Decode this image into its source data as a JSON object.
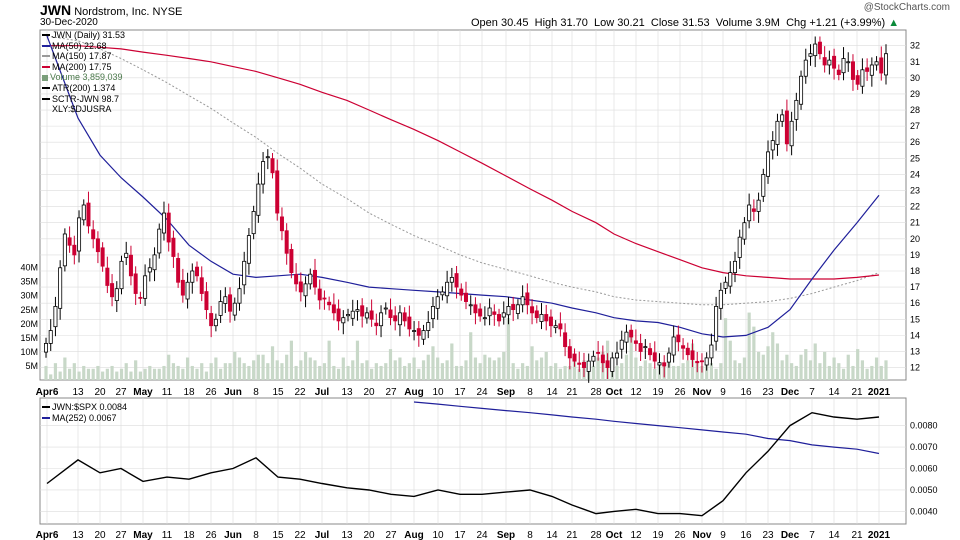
{
  "header": {
    "symbol": "JWN",
    "company": "Nordstrom, Inc.",
    "exchange": "NYSE",
    "date": "30-Dec-2020",
    "watermark": "@StockCharts.com",
    "open_label": "Open",
    "open": "30.45",
    "high_label": "High",
    "high": "31.70",
    "low_label": "Low",
    "low": "30.21",
    "close_label": "Close",
    "close": "31.53",
    "volume_label": "Volume",
    "volume": "3.9M",
    "chg_label": "Chg",
    "chg": "+1.21 (+3.99%)"
  },
  "legend_main": [
    {
      "text": "JWN (Daily) 31.53",
      "color": "#000000"
    },
    {
      "text": "MA(50) 22.68",
      "color": "#1f1f9a"
    },
    {
      "text": "MA(150) 17.87",
      "color": "#999999"
    },
    {
      "text": "MA(200) 17.75",
      "color": "#cc0033"
    },
    {
      "text": "Volume 3,859,039",
      "color": "#7a9e7a"
    },
    {
      "text": "ATR(200) 1.374",
      "color": "#000000"
    },
    {
      "text": "SCTR-JWN 98.7",
      "color": "#000000"
    },
    {
      "text": "XLY:$DJUSRA",
      "color": "#000000"
    }
  ],
  "legend_lower": [
    {
      "text": "JWN:$SPX 0.0084",
      "color": "#000000"
    },
    {
      "text": "MA(252) 0.0067",
      "color": "#1f1f9a"
    }
  ],
  "colors": {
    "up": "#000000",
    "down": "#cc0033",
    "ma50": "#1f1f9a",
    "ma150": "#999999",
    "ma200": "#cc0033",
    "volume": "#c8d8c8",
    "ratio": "#000000",
    "ratio_ma": "#1f1f9a",
    "grid": "#dcdcdc"
  },
  "chart_data": [
    {
      "type": "candlestick",
      "title": "JWN Nordstrom, Inc. NYSE",
      "x_ticks": [
        "Apr6",
        "13",
        "20",
        "27",
        "May",
        "11",
        "18",
        "26",
        "Jun",
        "8",
        "15",
        "22",
        "Jul",
        "13",
        "20",
        "27",
        "Aug",
        "10",
        "17",
        "24",
        "Sep",
        "8",
        "14",
        "21",
        "28",
        "Oct",
        "12",
        "19",
        "26",
        "Nov",
        "9",
        "16",
        "23",
        "Dec",
        "7",
        "14",
        "21",
        "2021"
      ],
      "y_ticks": [
        12,
        13,
        14,
        15,
        16,
        17,
        18,
        19,
        20,
        21,
        22,
        23,
        24,
        25,
        26,
        27,
        28,
        29,
        30,
        31,
        32
      ],
      "ylim": [
        11.6,
        32.6
      ],
      "volume_ticks": [
        "5M",
        "10M",
        "15M",
        "20M",
        "25M",
        "30M",
        "35M",
        "40M"
      ],
      "volume_ylim_millions": [
        0,
        42
      ],
      "grid": true,
      "closes": [
        13.5,
        14.3,
        15.8,
        18.2,
        20.3,
        19.6,
        19.0,
        21.3,
        22.1,
        20.8,
        20.0,
        19.2,
        18.3,
        17.1,
        16.4,
        16.9,
        18.6,
        19.1,
        17.7,
        16.6,
        16.3,
        17.7,
        18.2,
        19.0,
        20.6,
        21.6,
        19.8,
        18.9,
        17.3,
        16.5,
        17.3,
        18.0,
        17.7,
        16.6,
        15.6,
        14.6,
        15.0,
        16.1,
        16.4,
        15.5,
        16.0,
        16.9,
        18.6,
        20.2,
        21.7,
        23.4,
        24.8,
        25.1,
        24.1,
        21.6,
        20.5,
        19.1,
        17.9,
        17.2,
        16.7,
        17.2,
        17.8,
        17.0,
        16.2,
        16.3,
        15.9,
        15.4,
        14.9,
        15.1,
        15.3,
        15.5,
        15.6,
        15.2,
        15.4,
        15.0,
        14.6,
        15.4,
        15.7,
        15.1,
        14.9,
        15.4,
        14.9,
        14.4,
        14.3,
        14.0,
        14.3,
        14.8,
        15.8,
        16.4,
        16.7,
        17.3,
        17.6,
        17.0,
        16.5,
        16.1,
        15.9,
        15.4,
        15.2,
        15.1,
        15.7,
        15.3,
        14.9,
        15.4,
        15.8,
        15.6,
        15.9,
        16.4,
        15.9,
        15.4,
        15.1,
        15.3,
        14.9,
        14.6,
        14.6,
        14.4,
        13.3,
        12.6,
        12.4,
        12.2,
        12.0,
        12.4,
        12.7,
        12.9,
        12.3,
        12.0,
        12.6,
        12.9,
        13.7,
        14.2,
        13.9,
        13.5,
        13.0,
        13.3,
        12.8,
        12.4,
        12.3,
        12.1,
        12.9,
        13.9,
        13.6,
        13.2,
        12.8,
        12.5,
        12.3,
        12.4,
        12.6,
        13.4,
        15.8,
        16.8,
        17.3,
        17.9,
        18.6,
        20.1,
        21.0,
        22.1,
        21.7,
        22.4,
        24.0,
        25.4,
        26.1,
        27.3,
        27.7,
        25.9,
        27.3,
        28.6,
        30.1,
        31.1,
        31.5,
        32.1,
        31.5,
        30.8,
        31.1,
        30.6,
        30.2,
        31.2,
        31.0,
        29.9,
        29.6,
        30.5,
        30.4,
        30.8,
        31.0,
        30.3,
        31.5
      ],
      "candles_note": "each candle: close from closes[], open = prior close with small gap; high/low envelope approximated",
      "series": [
        {
          "name": "MA(50)",
          "points_at_ticks": [
            32.6,
            27.5,
            25.2,
            23.8,
            22.6,
            21.2,
            19.6,
            18.6,
            17.8,
            17.6,
            17.7,
            17.8,
            17.6,
            17.3,
            17.0,
            16.9,
            16.8,
            16.7,
            16.6,
            16.5,
            16.4,
            16.2,
            16.0,
            15.7,
            15.4,
            15.1,
            14.9,
            14.8,
            14.5,
            14.1,
            13.9,
            14.0,
            14.5,
            15.6,
            17.5,
            19.3,
            21.0,
            22.7
          ]
        },
        {
          "name": "MA(150)",
          "points_at_ticks": [
            32.6,
            32.3,
            31.8,
            31.2,
            30.5,
            29.7,
            28.9,
            28.1,
            27.2,
            26.3,
            25.3,
            24.4,
            23.4,
            22.5,
            21.6,
            20.9,
            20.2,
            19.6,
            19.0,
            18.5,
            18.1,
            17.7,
            17.3,
            17.0,
            16.7,
            16.4,
            16.2,
            16.1,
            16.0,
            15.9,
            15.9,
            16.0,
            16.1,
            16.3,
            16.6,
            17.0,
            17.4,
            17.9
          ]
        },
        {
          "name": "MA(200)",
          "points_at_ticks": [
            32.0,
            32.0,
            31.9,
            31.8,
            31.6,
            31.4,
            31.2,
            31.0,
            30.7,
            30.4,
            30.0,
            29.6,
            29.1,
            28.6,
            28.0,
            27.4,
            26.8,
            26.1,
            25.4,
            24.7,
            23.9,
            23.1,
            22.4,
            21.7,
            21.0,
            20.3,
            19.7,
            19.2,
            18.7,
            18.2,
            17.9,
            17.7,
            17.6,
            17.5,
            17.5,
            17.5,
            17.6,
            17.75
          ]
        }
      ],
      "volume_millions": [
        5,
        2,
        6,
        3,
        8,
        4,
        6,
        3,
        5,
        4,
        4,
        5,
        3,
        4,
        5,
        3,
        4,
        6,
        3,
        7,
        3,
        4,
        5,
        4,
        4,
        5,
        9,
        6,
        5,
        4,
        8,
        5,
        4,
        6,
        3,
        6,
        8,
        4,
        6,
        6,
        10,
        8,
        6,
        5,
        7,
        9,
        9,
        6,
        12,
        7,
        6,
        9,
        14,
        5,
        7,
        10,
        8,
        7,
        5,
        6,
        14,
        5,
        4,
        8,
        5,
        7,
        14,
        6,
        7,
        4,
        6,
        5,
        6,
        11,
        7,
        8,
        5,
        6,
        8,
        4,
        7,
        9,
        12,
        8,
        6,
        7,
        13,
        5,
        5,
        7,
        17,
        8,
        6,
        9,
        8,
        7,
        8,
        10,
        22,
        6,
        4,
        6,
        5,
        12,
        7,
        8,
        10,
        5,
        6,
        4,
        5,
        5,
        8,
        4,
        7,
        6,
        5,
        8,
        10,
        14,
        7,
        5,
        6,
        9,
        16,
        8,
        5,
        7,
        6,
        4,
        6,
        5,
        7,
        5,
        5,
        6,
        7,
        13,
        6,
        5,
        7,
        6,
        4,
        6,
        22,
        14,
        7,
        6,
        8,
        24,
        19,
        10,
        9,
        12,
        17,
        13,
        7,
        9,
        6,
        5,
        9,
        11,
        7,
        13,
        6,
        10,
        5,
        8,
        6,
        4,
        9,
        5,
        11,
        7,
        4,
        5,
        8,
        5,
        7
      ]
    },
    {
      "type": "line",
      "title": "JWN:$SPX",
      "x_ticks": [
        "Apr6",
        "13",
        "20",
        "27",
        "May",
        "11",
        "18",
        "26",
        "Jun",
        "8",
        "15",
        "22",
        "Jul",
        "13",
        "20",
        "27",
        "Aug",
        "10",
        "17",
        "24",
        "Sep",
        "8",
        "14",
        "21",
        "28",
        "Oct",
        "12",
        "19",
        "26",
        "Nov",
        "9",
        "16",
        "23",
        "Dec",
        "7",
        "14",
        "21",
        "2021"
      ],
      "y_ticks": [
        0.004,
        0.005,
        0.006,
        0.007,
        0.008
      ],
      "ylim": [
        0.0036,
        0.0091
      ],
      "grid": true,
      "series": [
        {
          "name": "JWN:$SPX",
          "points_at_ticks": [
            0.0053,
            0.0064,
            0.0058,
            0.006,
            0.0054,
            0.0056,
            0.0055,
            0.0058,
            0.006,
            0.0065,
            0.0056,
            0.0055,
            0.0053,
            0.0051,
            0.005,
            0.0048,
            0.0047,
            0.005,
            0.0048,
            0.0048,
            0.0049,
            0.005,
            0.0047,
            0.0043,
            0.0039,
            0.004,
            0.0041,
            0.0039,
            0.0039,
            0.0038,
            0.0045,
            0.0058,
            0.0068,
            0.008,
            0.0086,
            0.0084,
            0.0083,
            0.0084
          ]
        },
        {
          "name": "MA(252)",
          "points_at_ticks": [
            null,
            null,
            null,
            null,
            null,
            null,
            null,
            null,
            null,
            null,
            null,
            null,
            null,
            null,
            null,
            null,
            0.0091,
            0.009,
            0.0089,
            0.0088,
            0.0087,
            0.0086,
            0.0085,
            0.0084,
            0.0083,
            0.0082,
            0.0081,
            0.008,
            0.0079,
            0.0078,
            0.0077,
            0.0076,
            0.0074,
            0.0073,
            0.0071,
            0.007,
            0.0069,
            0.0067
          ]
        }
      ]
    }
  ]
}
